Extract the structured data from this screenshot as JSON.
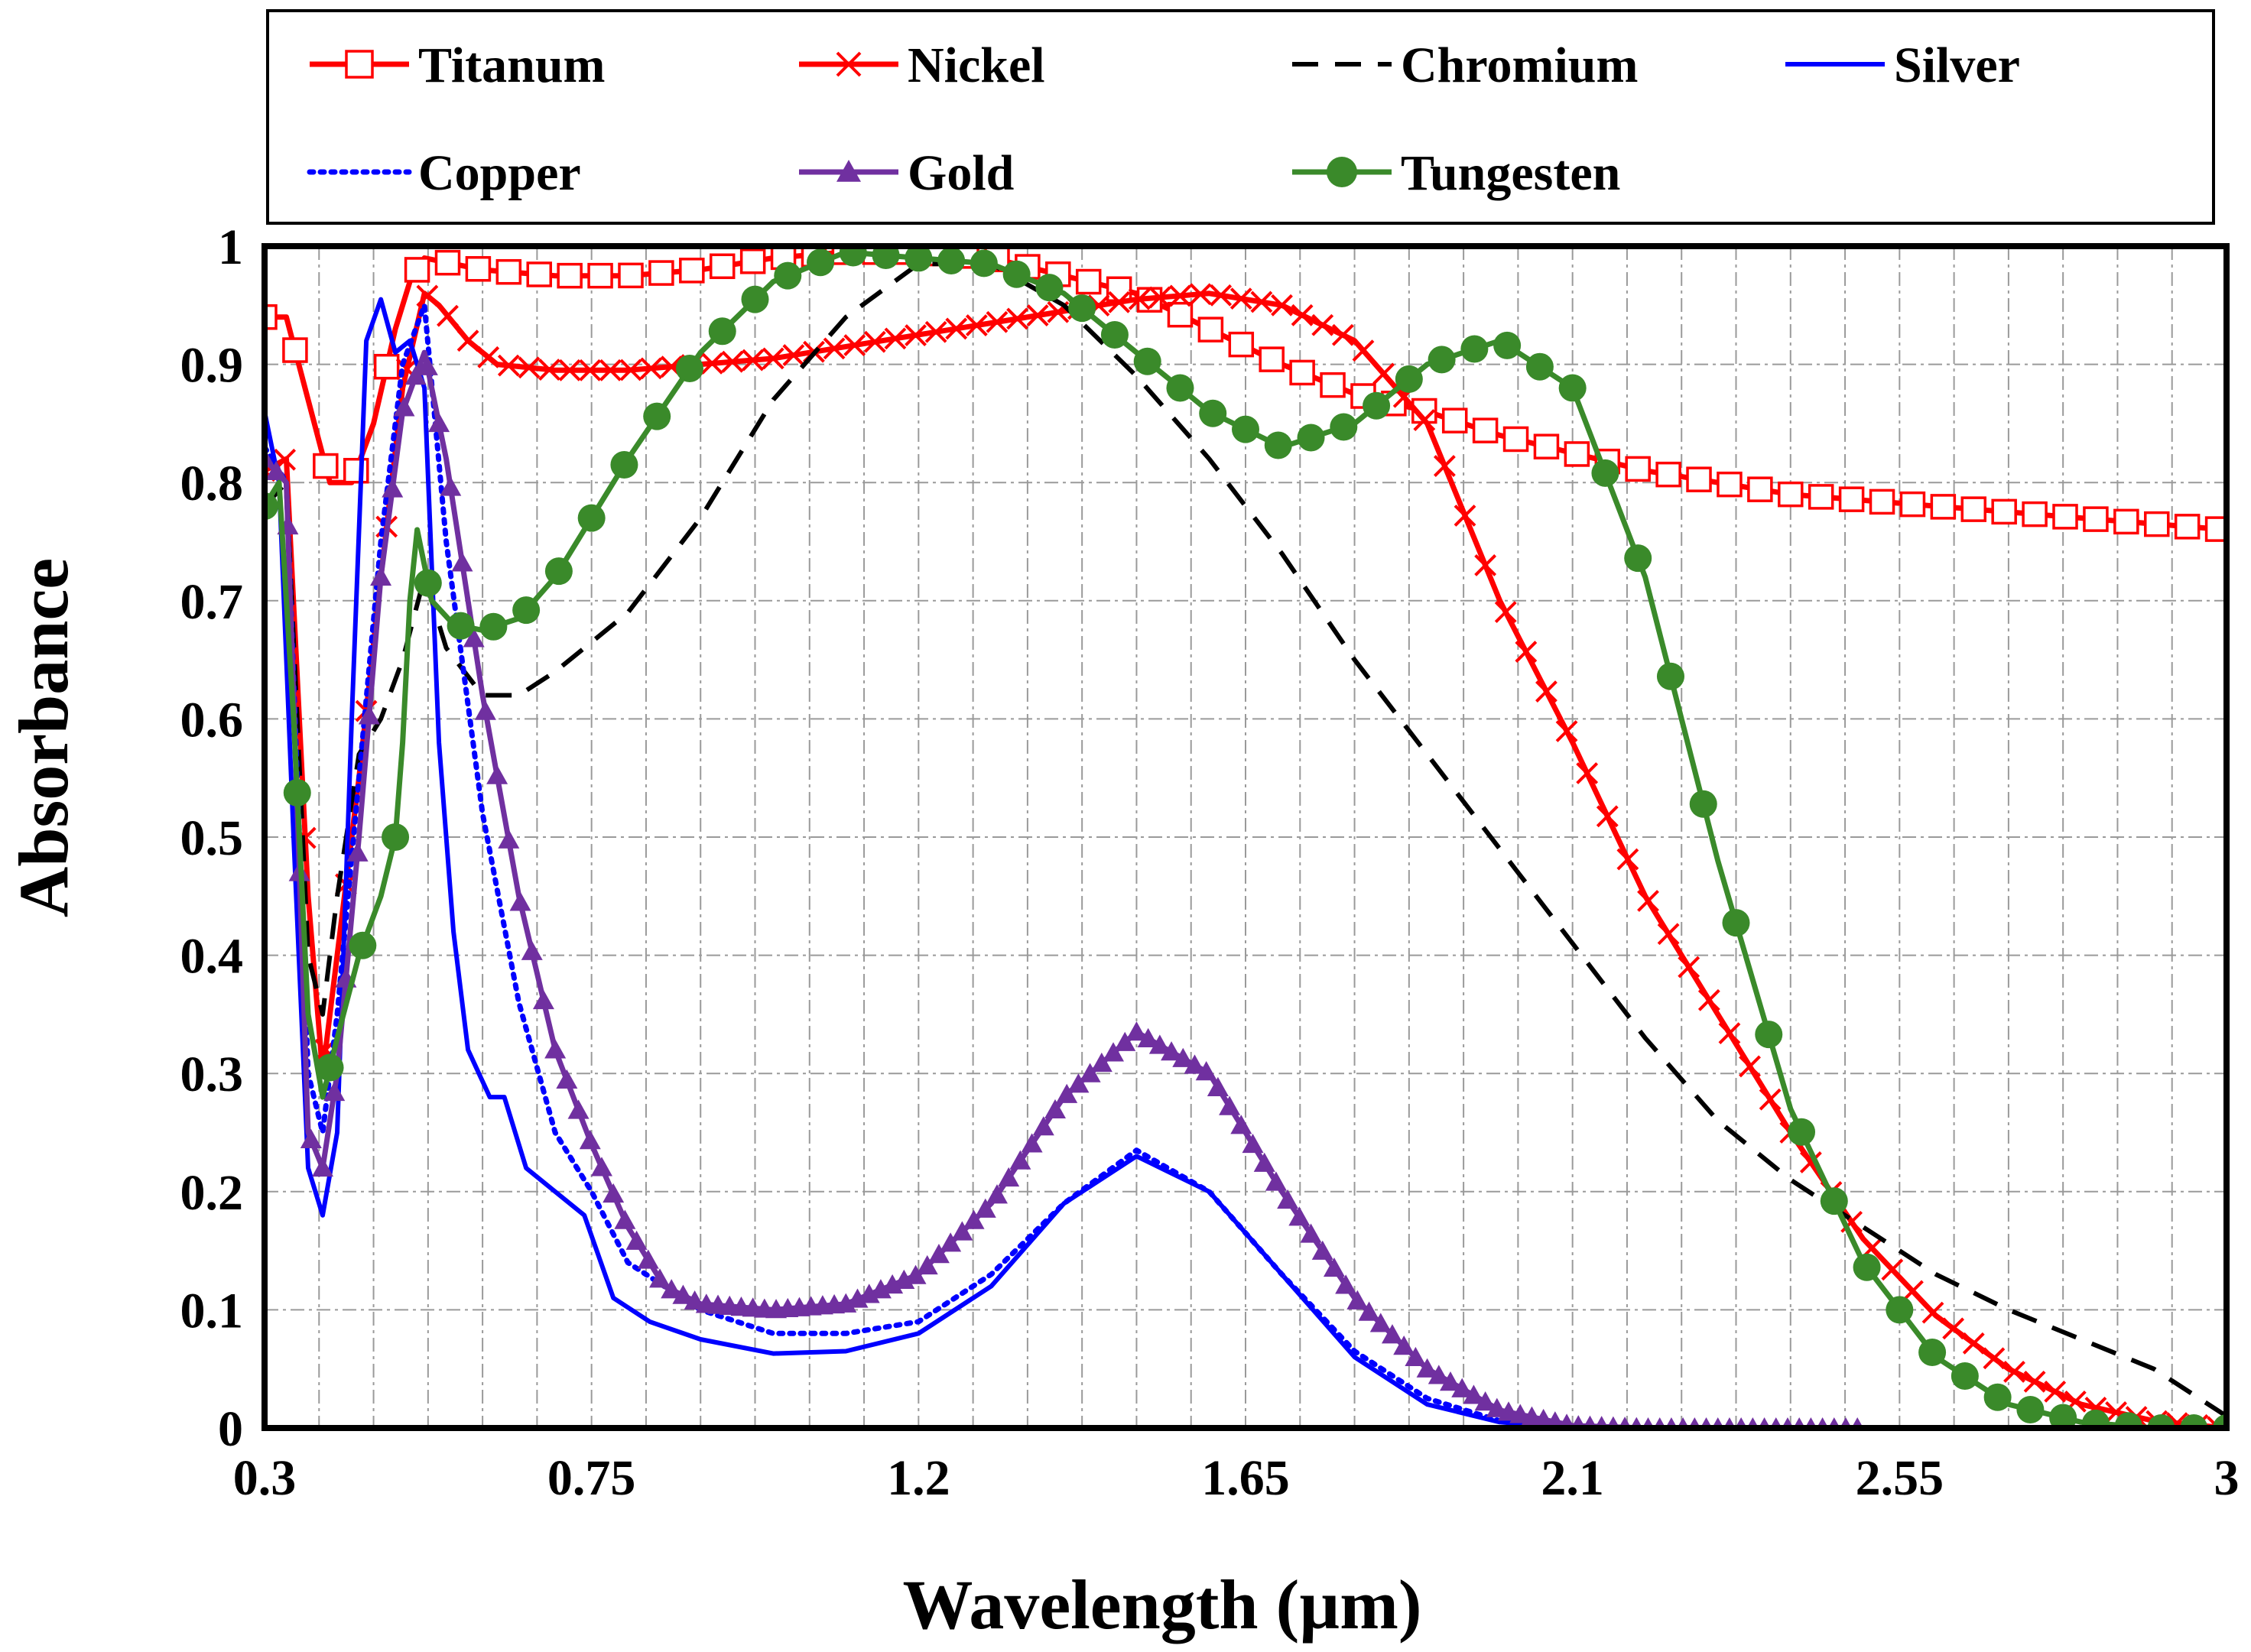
{
  "chart_data": {
    "type": "line",
    "title": "",
    "xlabel": "Wavelength (µm)",
    "ylabel": "Absorbance",
    "xlim": [
      0.3,
      3.0
    ],
    "ylim": [
      0,
      1
    ],
    "x_ticks": [
      0.3,
      0.75,
      1.2,
      1.65,
      2.1,
      2.55,
      3.0
    ],
    "x_tick_labels": [
      "0.3",
      "0.75",
      "1.2",
      "1.65",
      "2.1",
      "2.55",
      "3"
    ],
    "y_ticks": [
      0,
      0.1,
      0.2,
      0.3,
      0.4,
      0.5,
      0.6,
      0.7,
      0.8,
      0.9,
      1.0
    ],
    "y_tick_labels": [
      "0",
      "0.1",
      "0.2",
      "0.3",
      "0.4",
      "0.5",
      "0.6",
      "0.7",
      "0.8",
      "0.9",
      "1"
    ],
    "grid": true,
    "legend_position": "top",
    "series": [
      {
        "name": "Titanum",
        "color": "#ff0000",
        "marker": "open-square",
        "line": "solid",
        "points": [
          [
            0.3,
            0.94
          ],
          [
            0.33,
            0.94
          ],
          [
            0.36,
            0.87
          ],
          [
            0.39,
            0.8
          ],
          [
            0.42,
            0.8
          ],
          [
            0.45,
            0.85
          ],
          [
            0.48,
            0.93
          ],
          [
            0.5,
            0.97
          ],
          [
            0.52,
            0.99
          ],
          [
            0.56,
            0.985
          ],
          [
            0.6,
            0.98
          ],
          [
            0.7,
            0.975
          ],
          [
            0.8,
            0.975
          ],
          [
            0.9,
            0.98
          ],
          [
            1.0,
            0.99
          ],
          [
            1.1,
            0.995
          ],
          [
            1.2,
            0.995
          ],
          [
            1.3,
            0.99
          ],
          [
            1.4,
            0.975
          ],
          [
            1.5,
            0.96
          ],
          [
            1.6,
            0.93
          ],
          [
            1.7,
            0.9
          ],
          [
            1.8,
            0.875
          ],
          [
            1.9,
            0.86
          ],
          [
            2.0,
            0.84
          ],
          [
            2.1,
            0.825
          ],
          [
            2.2,
            0.81
          ],
          [
            2.3,
            0.8
          ],
          [
            2.4,
            0.79
          ],
          [
            2.5,
            0.785
          ],
          [
            2.6,
            0.78
          ],
          [
            2.7,
            0.775
          ],
          [
            2.8,
            0.77
          ],
          [
            2.9,
            0.765
          ],
          [
            3.0,
            0.76
          ]
        ]
      },
      {
        "name": "Nickel",
        "color": "#ff0000",
        "marker": "x",
        "line": "solid",
        "points": [
          [
            0.3,
            0.81
          ],
          [
            0.33,
            0.82
          ],
          [
            0.36,
            0.45
          ],
          [
            0.38,
            0.3
          ],
          [
            0.4,
            0.4
          ],
          [
            0.43,
            0.55
          ],
          [
            0.46,
            0.72
          ],
          [
            0.49,
            0.88
          ],
          [
            0.52,
            0.96
          ],
          [
            0.54,
            0.95
          ],
          [
            0.58,
            0.92
          ],
          [
            0.62,
            0.9
          ],
          [
            0.7,
            0.895
          ],
          [
            0.8,
            0.895
          ],
          [
            0.9,
            0.9
          ],
          [
            1.0,
            0.905
          ],
          [
            1.1,
            0.915
          ],
          [
            1.2,
            0.925
          ],
          [
            1.3,
            0.935
          ],
          [
            1.4,
            0.945
          ],
          [
            1.5,
            0.955
          ],
          [
            1.6,
            0.96
          ],
          [
            1.7,
            0.95
          ],
          [
            1.8,
            0.92
          ],
          [
            1.9,
            0.85
          ],
          [
            2.0,
            0.7
          ],
          [
            2.1,
            0.58
          ],
          [
            2.2,
            0.45
          ],
          [
            2.3,
            0.35
          ],
          [
            2.4,
            0.25
          ],
          [
            2.5,
            0.16
          ],
          [
            2.6,
            0.095
          ],
          [
            2.7,
            0.05
          ],
          [
            2.8,
            0.02
          ],
          [
            2.9,
            0.006
          ],
          [
            3.0,
            0.0
          ]
        ]
      },
      {
        "name": "Chromium",
        "color": "#000000",
        "marker": "none",
        "line": "dashed",
        "points": [
          [
            0.3,
            0.78
          ],
          [
            0.33,
            0.8
          ],
          [
            0.36,
            0.4
          ],
          [
            0.38,
            0.35
          ],
          [
            0.4,
            0.45
          ],
          [
            0.43,
            0.57
          ],
          [
            0.46,
            0.6
          ],
          [
            0.49,
            0.65
          ],
          [
            0.52,
            0.72
          ],
          [
            0.55,
            0.66
          ],
          [
            0.6,
            0.62
          ],
          [
            0.65,
            0.62
          ],
          [
            0.7,
            0.64
          ],
          [
            0.8,
            0.69
          ],
          [
            0.9,
            0.77
          ],
          [
            1.0,
            0.87
          ],
          [
            1.1,
            0.94
          ],
          [
            1.2,
            0.985
          ],
          [
            1.3,
            0.985
          ],
          [
            1.4,
            0.95
          ],
          [
            1.5,
            0.89
          ],
          [
            1.6,
            0.82
          ],
          [
            1.7,
            0.74
          ],
          [
            1.8,
            0.65
          ],
          [
            1.9,
            0.57
          ],
          [
            2.0,
            0.49
          ],
          [
            2.1,
            0.41
          ],
          [
            2.2,
            0.33
          ],
          [
            2.3,
            0.26
          ],
          [
            2.4,
            0.21
          ],
          [
            2.5,
            0.17
          ],
          [
            2.6,
            0.13
          ],
          [
            2.7,
            0.1
          ],
          [
            2.8,
            0.075
          ],
          [
            2.9,
            0.05
          ],
          [
            3.0,
            0.01
          ]
        ]
      },
      {
        "name": "Silver",
        "color": "#0000ff",
        "marker": "none",
        "line": "solid",
        "points": [
          [
            0.3,
            0.86
          ],
          [
            0.32,
            0.8
          ],
          [
            0.34,
            0.5
          ],
          [
            0.36,
            0.22
          ],
          [
            0.38,
            0.18
          ],
          [
            0.4,
            0.25
          ],
          [
            0.42,
            0.6
          ],
          [
            0.44,
            0.92
          ],
          [
            0.46,
            0.955
          ],
          [
            0.48,
            0.91
          ],
          [
            0.5,
            0.92
          ],
          [
            0.52,
            0.88
          ],
          [
            0.54,
            0.58
          ],
          [
            0.56,
            0.42
          ],
          [
            0.58,
            0.32
          ],
          [
            0.61,
            0.28
          ],
          [
            0.63,
            0.28
          ],
          [
            0.66,
            0.22
          ],
          [
            0.7,
            0.2
          ],
          [
            0.74,
            0.18
          ],
          [
            0.78,
            0.11
          ],
          [
            0.83,
            0.09
          ],
          [
            0.9,
            0.075
          ],
          [
            1.0,
            0.063
          ],
          [
            1.1,
            0.065
          ],
          [
            1.2,
            0.08
          ],
          [
            1.3,
            0.12
          ],
          [
            1.4,
            0.19
          ],
          [
            1.5,
            0.23
          ],
          [
            1.6,
            0.2
          ],
          [
            1.7,
            0.13
          ],
          [
            1.8,
            0.06
          ],
          [
            1.9,
            0.02
          ],
          [
            2.0,
            0.005
          ],
          [
            2.1,
            0.0
          ],
          [
            2.4,
            0.0
          ]
        ]
      },
      {
        "name": "Copper",
        "color": "#0000ff",
        "marker": "none",
        "line": "dotted",
        "points": [
          [
            0.3,
            0.83
          ],
          [
            0.33,
            0.8
          ],
          [
            0.36,
            0.3
          ],
          [
            0.38,
            0.25
          ],
          [
            0.4,
            0.35
          ],
          [
            0.43,
            0.55
          ],
          [
            0.46,
            0.75
          ],
          [
            0.49,
            0.9
          ],
          [
            0.52,
            0.95
          ],
          [
            0.55,
            0.75
          ],
          [
            0.6,
            0.52
          ],
          [
            0.65,
            0.36
          ],
          [
            0.7,
            0.25
          ],
          [
            0.75,
            0.2
          ],
          [
            0.8,
            0.14
          ],
          [
            0.9,
            0.1
          ],
          [
            1.0,
            0.08
          ],
          [
            1.1,
            0.08
          ],
          [
            1.2,
            0.09
          ],
          [
            1.3,
            0.13
          ],
          [
            1.4,
            0.19
          ],
          [
            1.5,
            0.235
          ],
          [
            1.6,
            0.2
          ],
          [
            1.7,
            0.13
          ],
          [
            1.8,
            0.065
          ],
          [
            1.9,
            0.025
          ],
          [
            2.0,
            0.006
          ],
          [
            2.1,
            0.0
          ],
          [
            2.4,
            0.0
          ]
        ]
      },
      {
        "name": "Gold",
        "color": "#7030a0",
        "marker": "triangle",
        "line": "solid",
        "points": [
          [
            0.3,
            0.82
          ],
          [
            0.33,
            0.8
          ],
          [
            0.36,
            0.25
          ],
          [
            0.38,
            0.22
          ],
          [
            0.4,
            0.3
          ],
          [
            0.43,
            0.5
          ],
          [
            0.46,
            0.72
          ],
          [
            0.49,
            0.86
          ],
          [
            0.52,
            0.91
          ],
          [
            0.55,
            0.82
          ],
          [
            0.6,
            0.62
          ],
          [
            0.65,
            0.45
          ],
          [
            0.7,
            0.32
          ],
          [
            0.75,
            0.24
          ],
          [
            0.8,
            0.17
          ],
          [
            0.85,
            0.12
          ],
          [
            0.9,
            0.105
          ],
          [
            1.0,
            0.1
          ],
          [
            1.1,
            0.105
          ],
          [
            1.2,
            0.13
          ],
          [
            1.3,
            0.19
          ],
          [
            1.4,
            0.28
          ],
          [
            1.5,
            0.335
          ],
          [
            1.6,
            0.3
          ],
          [
            1.7,
            0.2
          ],
          [
            1.8,
            0.11
          ],
          [
            1.9,
            0.05
          ],
          [
            2.0,
            0.015
          ],
          [
            2.1,
            0.002
          ],
          [
            2.2,
            0.0
          ],
          [
            2.5,
            0.0
          ]
        ]
      },
      {
        "name": "Tungesten",
        "color": "#3a8a2a",
        "marker": "filled-circle",
        "line": "solid",
        "points": [
          [
            0.3,
            0.78
          ],
          [
            0.32,
            0.8
          ],
          [
            0.34,
            0.6
          ],
          [
            0.36,
            0.35
          ],
          [
            0.38,
            0.28
          ],
          [
            0.4,
            0.33
          ],
          [
            0.43,
            0.4
          ],
          [
            0.46,
            0.45
          ],
          [
            0.48,
            0.5
          ],
          [
            0.49,
            0.58
          ],
          [
            0.5,
            0.7
          ],
          [
            0.51,
            0.76
          ],
          [
            0.53,
            0.7
          ],
          [
            0.56,
            0.68
          ],
          [
            0.6,
            0.675
          ],
          [
            0.65,
            0.685
          ],
          [
            0.7,
            0.72
          ],
          [
            0.8,
            0.82
          ],
          [
            0.9,
            0.91
          ],
          [
            1.0,
            0.97
          ],
          [
            1.1,
            0.995
          ],
          [
            1.2,
            0.99
          ],
          [
            1.3,
            0.985
          ],
          [
            1.4,
            0.96
          ],
          [
            1.5,
            0.91
          ],
          [
            1.6,
            0.86
          ],
          [
            1.7,
            0.83
          ],
          [
            1.8,
            0.85
          ],
          [
            1.9,
            0.9
          ],
          [
            2.0,
            0.92
          ],
          [
            2.1,
            0.88
          ],
          [
            2.2,
            0.72
          ],
          [
            2.3,
            0.48
          ],
          [
            2.4,
            0.27
          ],
          [
            2.5,
            0.14
          ],
          [
            2.6,
            0.06
          ],
          [
            2.7,
            0.02
          ],
          [
            2.8,
            0.005
          ],
          [
            2.9,
            0.0
          ],
          [
            3.0,
            0.0
          ]
        ]
      }
    ]
  }
}
